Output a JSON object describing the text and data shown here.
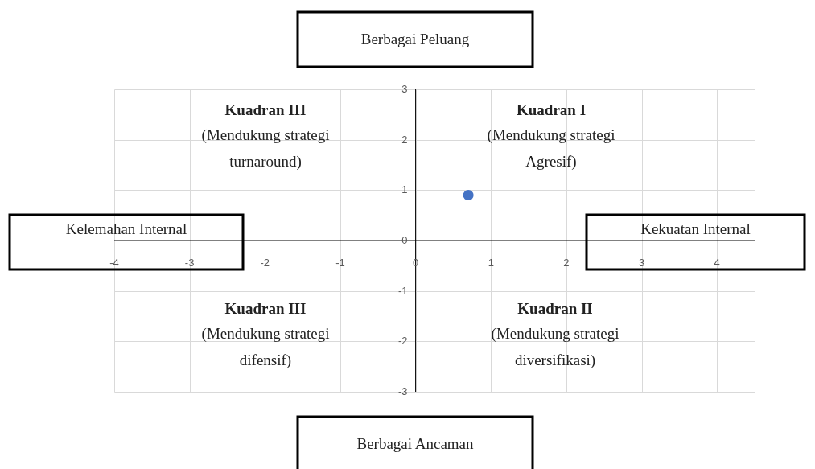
{
  "chart_data": {
    "type": "scatter",
    "x": [
      0.7
    ],
    "series": [
      {
        "color": "#4472c4",
        "values": [
          0.9
        ]
      }
    ],
    "xlim": [
      -4,
      4.5
    ],
    "ylim": [
      -3,
      3
    ],
    "xticks": [
      -4,
      -3,
      -2,
      -1,
      0,
      1,
      2,
      3,
      4
    ],
    "yticks": [
      -3,
      -2,
      -1,
      0,
      1,
      2,
      3
    ],
    "grid": true,
    "marker": "circle",
    "annotations": [
      "Berbagai Peluang",
      "Kelemahan Internal",
      "Kekuatan Internal",
      "Berbagai Ancaman",
      "Kuadran III\n(Mendukung strategi\nturnaround)",
      "Kuadran I\n(Mendukung strategi\nAgresif)",
      "Kuadran III\n(Mendukung strategi\ndifensif)",
      "Kuadran II\n(Mendukung strategi\ndiversifikasi)"
    ]
  }
}
